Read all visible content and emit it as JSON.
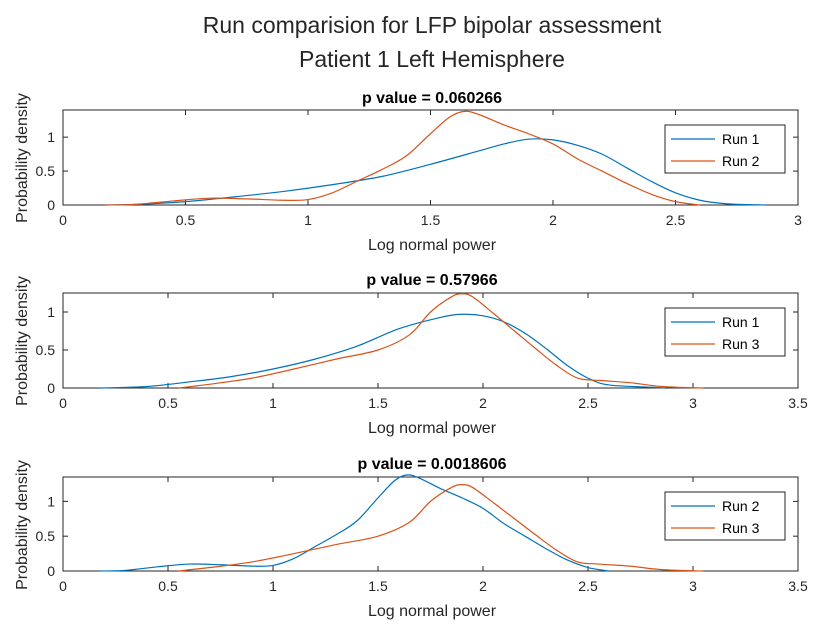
{
  "figure": {
    "title_line1": "Run comparision for LFP bipolar assessment",
    "title_line2": "Patient 1 Left Hemisphere"
  },
  "colors": {
    "blue": "#0072BD",
    "orange": "#D95319",
    "axes": "#262626"
  },
  "chart_data": [
    {
      "type": "line",
      "title": "p value = 0.060266",
      "xlabel": "Log normal power",
      "ylabel": "Probability density",
      "xlim": [
        0,
        3
      ],
      "ylim": [
        0,
        1.4
      ],
      "xticks": [
        0,
        0.5,
        1,
        1.5,
        2,
        2.5,
        3
      ],
      "xticklabels": [
        "0",
        "0.5",
        "1",
        "1.5",
        "2",
        "2.5",
        "3"
      ],
      "yticks": [
        0,
        0.5,
        1
      ],
      "yticklabels": [
        "0",
        "0.5",
        "1"
      ],
      "legend": "top-right",
      "series": [
        {
          "name": "Run 1",
          "color": "#0072BD",
          "x": [
            0.17,
            0.3,
            0.5,
            0.7,
            0.9,
            1.1,
            1.3,
            1.5,
            1.7,
            1.8,
            1.9,
            2.0,
            2.1,
            2.2,
            2.3,
            2.4,
            2.5,
            2.6,
            2.7,
            2.8,
            2.87
          ],
          "y": [
            0.0,
            0.01,
            0.05,
            0.12,
            0.2,
            0.3,
            0.42,
            0.6,
            0.8,
            0.9,
            0.97,
            0.96,
            0.88,
            0.75,
            0.55,
            0.35,
            0.18,
            0.07,
            0.02,
            0.005,
            0.0
          ]
        },
        {
          "name": "Run 2",
          "color": "#D95319",
          "x": [
            0.17,
            0.3,
            0.45,
            0.6,
            0.75,
            0.9,
            1.0,
            1.1,
            1.2,
            1.3,
            1.4,
            1.5,
            1.58,
            1.64,
            1.7,
            1.8,
            1.9,
            2.0,
            2.1,
            2.2,
            2.3,
            2.4,
            2.5,
            2.6
          ],
          "y": [
            0.0,
            0.01,
            0.06,
            0.1,
            0.09,
            0.07,
            0.08,
            0.18,
            0.35,
            0.52,
            0.72,
            1.05,
            1.3,
            1.38,
            1.33,
            1.18,
            1.05,
            0.9,
            0.68,
            0.5,
            0.32,
            0.16,
            0.05,
            0.0
          ]
        }
      ]
    },
    {
      "type": "line",
      "title": "p value = 0.57966",
      "xlabel": "Log normal power",
      "ylabel": "Probability density",
      "xlim": [
        0,
        3.5
      ],
      "ylim": [
        0,
        1.25
      ],
      "xticks": [
        0,
        0.5,
        1,
        1.5,
        2,
        2.5,
        3,
        3.5
      ],
      "xticklabels": [
        "0",
        "0.5",
        "1",
        "1.5",
        "2",
        "2.5",
        "3",
        "3.5"
      ],
      "yticks": [
        0,
        0.5,
        1
      ],
      "yticklabels": [
        "0",
        "0.5",
        "1"
      ],
      "legend": "top-right",
      "series": [
        {
          "name": "Run 1",
          "color": "#0072BD",
          "x": [
            0.17,
            0.4,
            0.6,
            0.8,
            1.0,
            1.2,
            1.4,
            1.6,
            1.8,
            1.9,
            2.0,
            2.1,
            2.2,
            2.3,
            2.4,
            2.5,
            2.6,
            2.8,
            2.87
          ],
          "y": [
            0.0,
            0.02,
            0.08,
            0.15,
            0.25,
            0.38,
            0.55,
            0.78,
            0.93,
            0.97,
            0.95,
            0.87,
            0.72,
            0.52,
            0.3,
            0.13,
            0.04,
            0.01,
            0.0
          ]
        },
        {
          "name": "Run 3",
          "color": "#D95319",
          "x": [
            0.55,
            0.7,
            0.9,
            1.1,
            1.3,
            1.5,
            1.65,
            1.75,
            1.85,
            1.9,
            1.95,
            2.05,
            2.15,
            2.25,
            2.35,
            2.45,
            2.55,
            2.7,
            2.85,
            3.05
          ],
          "y": [
            0.0,
            0.05,
            0.13,
            0.25,
            0.38,
            0.5,
            0.7,
            1.0,
            1.2,
            1.24,
            1.2,
            0.98,
            0.75,
            0.52,
            0.3,
            0.13,
            0.1,
            0.07,
            0.02,
            0.0
          ]
        }
      ]
    },
    {
      "type": "line",
      "title": "p value = 0.0018606",
      "xlabel": "Log normal power",
      "ylabel": "Probability density",
      "xlim": [
        0,
        3.5
      ],
      "ylim": [
        0,
        1.35
      ],
      "xticks": [
        0,
        0.5,
        1,
        1.5,
        2,
        2.5,
        3,
        3.5
      ],
      "xticklabels": [
        "0",
        "0.5",
        "1",
        "1.5",
        "2",
        "2.5",
        "3",
        "3.5"
      ],
      "yticks": [
        0,
        0.5,
        1
      ],
      "yticklabels": [
        "0",
        "0.5",
        "1"
      ],
      "legend": "top-right",
      "series": [
        {
          "name": "Run 2",
          "color": "#0072BD",
          "x": [
            0.17,
            0.3,
            0.45,
            0.6,
            0.75,
            0.9,
            1.0,
            1.1,
            1.2,
            1.3,
            1.4,
            1.5,
            1.58,
            1.64,
            1.7,
            1.8,
            1.9,
            2.0,
            2.1,
            2.2,
            2.3,
            2.4,
            2.5,
            2.6
          ],
          "y": [
            0.0,
            0.01,
            0.06,
            0.1,
            0.09,
            0.07,
            0.08,
            0.18,
            0.35,
            0.52,
            0.72,
            1.05,
            1.3,
            1.38,
            1.33,
            1.18,
            1.05,
            0.9,
            0.68,
            0.5,
            0.32,
            0.16,
            0.05,
            0.0
          ]
        },
        {
          "name": "Run 3",
          "color": "#D95319",
          "x": [
            0.55,
            0.7,
            0.9,
            1.1,
            1.3,
            1.5,
            1.65,
            1.75,
            1.85,
            1.9,
            1.95,
            2.05,
            2.15,
            2.25,
            2.35,
            2.45,
            2.55,
            2.7,
            2.85,
            3.05
          ],
          "y": [
            0.0,
            0.05,
            0.13,
            0.25,
            0.38,
            0.5,
            0.7,
            1.0,
            1.2,
            1.24,
            1.2,
            0.98,
            0.75,
            0.52,
            0.3,
            0.13,
            0.1,
            0.07,
            0.02,
            0.0
          ]
        }
      ]
    }
  ]
}
